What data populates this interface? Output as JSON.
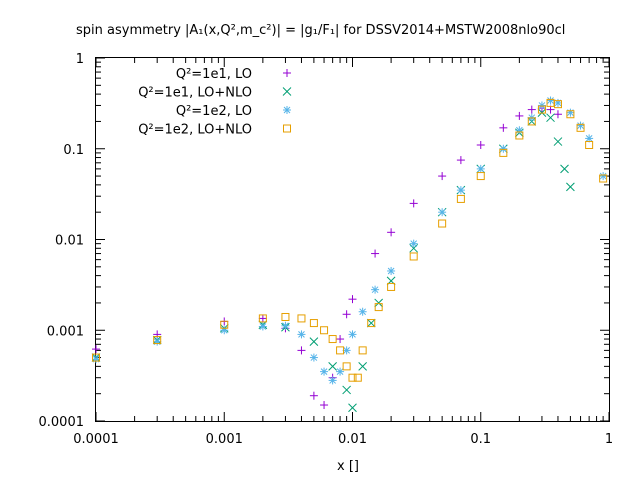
{
  "chart_data": {
    "type": "scatter",
    "title": "spin asymmetry |A₁(x,Q²,m_c²)| = |g₁/F₁| for DSSV2014+MSTW2008nlo90cl",
    "xlabel": "x []",
    "ylabel": "",
    "x_scale": "log",
    "y_scale": "log",
    "xlim": [
      0.0001,
      1
    ],
    "ylim": [
      0.0001,
      1
    ],
    "grid": false,
    "legend_position": "top-left",
    "x_ticks": [
      "0.0001",
      "0.001",
      "0.01",
      "0.1",
      "1"
    ],
    "y_ticks": [
      "0.0001",
      "0.001",
      "0.01",
      "0.1",
      "1"
    ],
    "series": [
      {
        "name": "Q²=1e1, LO",
        "marker": "plus",
        "color": "#9400d3",
        "points": [
          [
            0.0001,
            0.00062
          ],
          [
            0.0003,
            0.0009
          ],
          [
            0.001,
            0.00125
          ],
          [
            0.002,
            0.00135
          ],
          [
            0.003,
            0.00105
          ],
          [
            0.004,
            0.0006
          ],
          [
            0.005,
            0.00019
          ],
          [
            0.006,
            0.00015
          ],
          [
            0.007,
            0.0003
          ],
          [
            0.008,
            0.0008
          ],
          [
            0.009,
            0.0015
          ],
          [
            0.01,
            0.0022
          ],
          [
            0.015,
            0.007
          ],
          [
            0.02,
            0.012
          ],
          [
            0.03,
            0.025
          ],
          [
            0.05,
            0.05
          ],
          [
            0.07,
            0.075
          ],
          [
            0.1,
            0.11
          ],
          [
            0.15,
            0.17
          ],
          [
            0.2,
            0.23
          ],
          [
            0.25,
            0.27
          ],
          [
            0.3,
            0.28
          ],
          [
            0.35,
            0.27
          ],
          [
            0.4,
            0.24
          ]
        ]
      },
      {
        "name": "Q²=1e1, LO+NLO",
        "marker": "cross",
        "color": "#009e73",
        "points": [
          [
            0.0001,
            0.0005
          ],
          [
            0.0003,
            0.00078
          ],
          [
            0.001,
            0.00105
          ],
          [
            0.002,
            0.00115
          ],
          [
            0.003,
            0.00108
          ],
          [
            0.005,
            0.00075
          ],
          [
            0.007,
            0.0004
          ],
          [
            0.009,
            0.00022
          ],
          [
            0.01,
            0.00014
          ],
          [
            0.012,
            0.0004
          ],
          [
            0.014,
            0.0012
          ],
          [
            0.016,
            0.002
          ],
          [
            0.02,
            0.0035
          ],
          [
            0.03,
            0.008
          ],
          [
            0.05,
            0.02
          ],
          [
            0.07,
            0.035
          ],
          [
            0.1,
            0.06
          ],
          [
            0.15,
            0.1
          ],
          [
            0.2,
            0.15
          ],
          [
            0.25,
            0.2
          ],
          [
            0.3,
            0.25
          ],
          [
            0.35,
            0.22
          ],
          [
            0.4,
            0.12
          ],
          [
            0.45,
            0.06
          ],
          [
            0.5,
            0.038
          ]
        ]
      },
      {
        "name": "Q²=1e2, LO",
        "marker": "star",
        "color": "#56b4e9",
        "points": [
          [
            0.0001,
            0.00048
          ],
          [
            0.0003,
            0.00075
          ],
          [
            0.001,
            0.001
          ],
          [
            0.002,
            0.0011
          ],
          [
            0.003,
            0.00112
          ],
          [
            0.004,
            0.0009
          ],
          [
            0.005,
            0.0005
          ],
          [
            0.006,
            0.00035
          ],
          [
            0.007,
            0.00028
          ],
          [
            0.008,
            0.00035
          ],
          [
            0.009,
            0.0006
          ],
          [
            0.01,
            0.0009
          ],
          [
            0.012,
            0.0016
          ],
          [
            0.015,
            0.0028
          ],
          [
            0.02,
            0.0045
          ],
          [
            0.03,
            0.009
          ],
          [
            0.05,
            0.02
          ],
          [
            0.07,
            0.035
          ],
          [
            0.1,
            0.06
          ],
          [
            0.15,
            0.1
          ],
          [
            0.2,
            0.16
          ],
          [
            0.25,
            0.22
          ],
          [
            0.3,
            0.3
          ],
          [
            0.35,
            0.34
          ],
          [
            0.4,
            0.32
          ],
          [
            0.5,
            0.25
          ],
          [
            0.6,
            0.18
          ],
          [
            0.7,
            0.13
          ],
          [
            0.9,
            0.05
          ]
        ]
      },
      {
        "name": "Q²=1e2, LO+NLO",
        "marker": "square",
        "color": "#e69f00",
        "points": [
          [
            0.0001,
            0.0005
          ],
          [
            0.0003,
            0.00078
          ],
          [
            0.001,
            0.00115
          ],
          [
            0.002,
            0.00135
          ],
          [
            0.003,
            0.0014
          ],
          [
            0.004,
            0.00135
          ],
          [
            0.005,
            0.0012
          ],
          [
            0.006,
            0.001
          ],
          [
            0.007,
            0.0008
          ],
          [
            0.008,
            0.0006
          ],
          [
            0.009,
            0.0004
          ],
          [
            0.01,
            0.0003
          ],
          [
            0.011,
            0.0003
          ],
          [
            0.012,
            0.0006
          ],
          [
            0.014,
            0.0012
          ],
          [
            0.016,
            0.0018
          ],
          [
            0.02,
            0.003
          ],
          [
            0.03,
            0.0065
          ],
          [
            0.05,
            0.015
          ],
          [
            0.07,
            0.028
          ],
          [
            0.1,
            0.05
          ],
          [
            0.15,
            0.09
          ],
          [
            0.2,
            0.14
          ],
          [
            0.25,
            0.2
          ],
          [
            0.3,
            0.27
          ],
          [
            0.35,
            0.32
          ],
          [
            0.4,
            0.31
          ],
          [
            0.5,
            0.24
          ],
          [
            0.6,
            0.17
          ],
          [
            0.7,
            0.11
          ],
          [
            0.9,
            0.047
          ]
        ]
      }
    ]
  }
}
